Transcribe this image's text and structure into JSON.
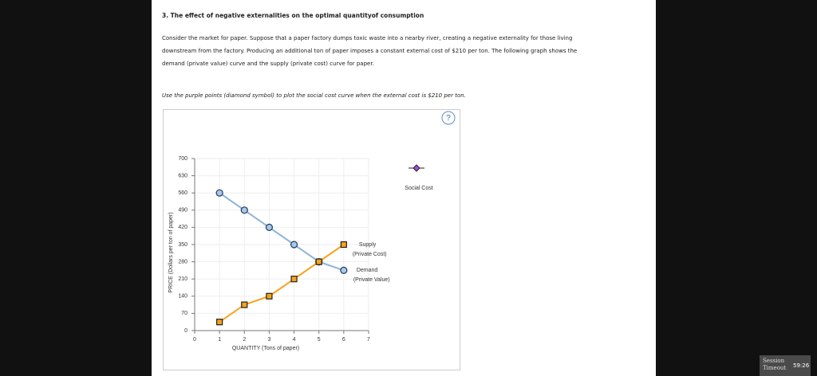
{
  "header": {
    "title": "3. The effect of negative externalities on the optimal quantityof consumption"
  },
  "body": {
    "paragraph": [
      "Consider the market for paper. Suppose that a paper factory dumps toxic waste into a nearby river, creating a negative externality for those living",
      "downstream from the factory. Producing an additional ton of paper imposes a constant external cost of $210 per ton. The following graph shows the",
      "demand (private value) curve and the supply (private cost) curve for paper."
    ],
    "instruction": "Use the purple points (diamond symbol) to plot the social cost curve when the external cost is $210 per ton."
  },
  "help": "?",
  "chart_data": {
    "type": "line",
    "x_label": "QUANTITY (Tons of paper)",
    "y_label": "PRICE (Dollars per ton of paper)",
    "x": [
      1,
      2,
      3,
      4,
      5,
      6
    ],
    "series": [
      {
        "name": "Demand",
        "sublabel": "(Private Value)",
        "color": "#8db3d9",
        "marker": "circle",
        "values": [
          560,
          490,
          420,
          350,
          280,
          245
        ]
      },
      {
        "name": "Supply",
        "sublabel": "(Private Cost)",
        "color": "#f7a21b",
        "marker": "square",
        "values": [
          35,
          105,
          140,
          210,
          280,
          350
        ]
      }
    ],
    "tool": {
      "name": "Social Cost",
      "color": "#a64bd8",
      "marker": "diamond"
    },
    "xlim": [
      0,
      7
    ],
    "xticks": [
      0,
      1,
      2,
      3,
      4,
      5,
      6,
      7
    ],
    "ylim": [
      0,
      700
    ],
    "yticks": [
      0,
      70,
      140,
      210,
      280,
      350,
      420,
      490,
      560,
      630,
      700
    ],
    "grid": true
  },
  "session": {
    "label": "Session Timeout",
    "time": "59:26"
  }
}
